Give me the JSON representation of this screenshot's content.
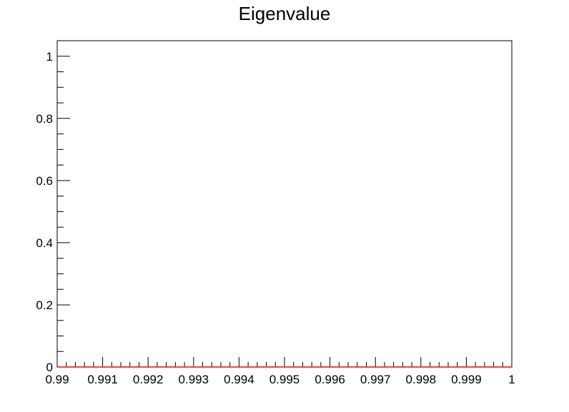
{
  "chart_data": {
    "type": "line",
    "title": "Eigenvalue",
    "xlabel": "",
    "ylabel": "",
    "xlim": [
      0.99,
      1.0
    ],
    "ylim": [
      0,
      1.05
    ],
    "x_ticks": [
      0.99,
      0.991,
      0.992,
      0.993,
      0.994,
      0.995,
      0.996,
      0.997,
      0.998,
      0.999,
      1.0
    ],
    "x_tick_labels": [
      "0.99",
      "0.991",
      "0.992",
      "0.993",
      "0.994",
      "0.995",
      "0.996",
      "0.997",
      "0.998",
      "0.999",
      "1"
    ],
    "y_ticks": [
      0,
      0.2,
      0.4,
      0.6,
      0.8,
      1.0
    ],
    "y_tick_labels": [
      "0",
      "0.2",
      "0.4",
      "0.6",
      "0.8",
      "1"
    ],
    "grid": false,
    "series": [
      {
        "color": "#ff0000",
        "x": [
          0.99,
          1.0
        ],
        "y": [
          0,
          0
        ]
      }
    ]
  }
}
